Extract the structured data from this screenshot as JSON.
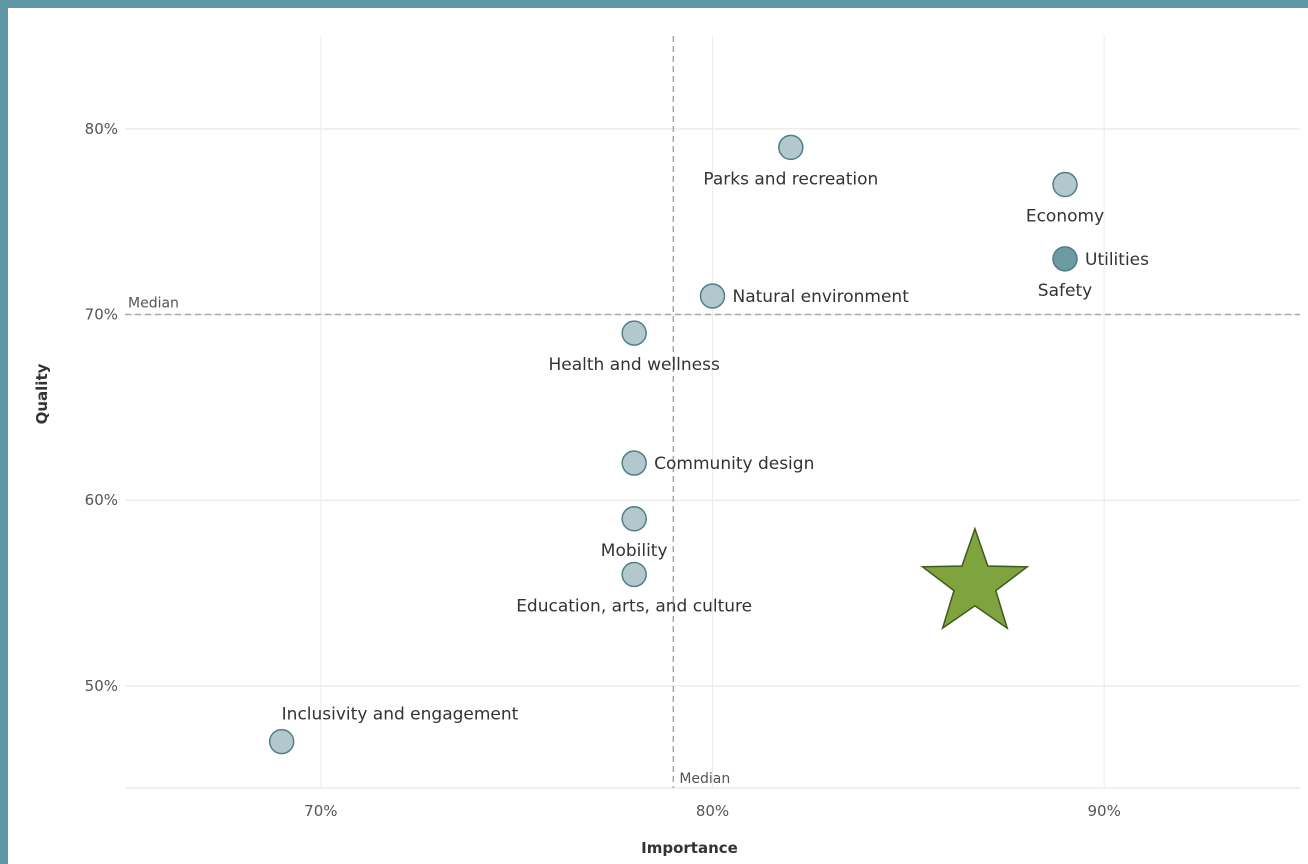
{
  "colors": {
    "frame": "#5f98a4",
    "point_fill": "#b3c8cc",
    "point_stroke": "#4f7f8a",
    "point_highlight_fill": "#6d9aa3",
    "grid": "#ececec",
    "median_line": "#a8a8a8",
    "star": "#7ea33f",
    "star_stroke": "#3f5a1f"
  },
  "chart_data": {
    "type": "scatter",
    "title": "",
    "xlabel": "Importance",
    "ylabel": "Quality",
    "xlim": [
      0.65,
      0.95
    ],
    "ylim": [
      0.445,
      0.85
    ],
    "x_ticks": [
      0.7,
      0.8,
      0.9
    ],
    "x_tick_labels": [
      "70%",
      "80%",
      "90%"
    ],
    "y_ticks": [
      0.5,
      0.6,
      0.7,
      0.8
    ],
    "y_tick_labels": [
      "50%",
      "60%",
      "70%",
      "80%"
    ],
    "grid": true,
    "median": {
      "x": 0.79,
      "y": 0.7,
      "label": "Median"
    },
    "points": [
      {
        "label": "Parks and recreation",
        "x": 0.82,
        "y": 0.79,
        "label_pos": "below"
      },
      {
        "label": "Economy",
        "x": 0.89,
        "y": 0.77,
        "label_pos": "below"
      },
      {
        "label": "Utilities",
        "x": 0.89,
        "y": 0.73,
        "label_pos": "right",
        "highlight": true
      },
      {
        "label": "Safety",
        "x": 0.89,
        "y": 0.73,
        "label_pos": "below-left"
      },
      {
        "label": "Natural environment",
        "x": 0.8,
        "y": 0.71,
        "label_pos": "right"
      },
      {
        "label": "Health and wellness",
        "x": 0.78,
        "y": 0.69,
        "label_pos": "below"
      },
      {
        "label": "Community design",
        "x": 0.78,
        "y": 0.62,
        "label_pos": "right"
      },
      {
        "label": "Mobility",
        "x": 0.78,
        "y": 0.59,
        "label_pos": "below"
      },
      {
        "label": "Education, arts, and culture",
        "x": 0.78,
        "y": 0.56,
        "label_pos": "below"
      },
      {
        "label": "Inclusivity and engagement",
        "x": 0.69,
        "y": 0.47,
        "label_pos": "above-right"
      }
    ],
    "annotations": [
      {
        "type": "star",
        "x": 0.867,
        "y": 0.555
      }
    ]
  }
}
